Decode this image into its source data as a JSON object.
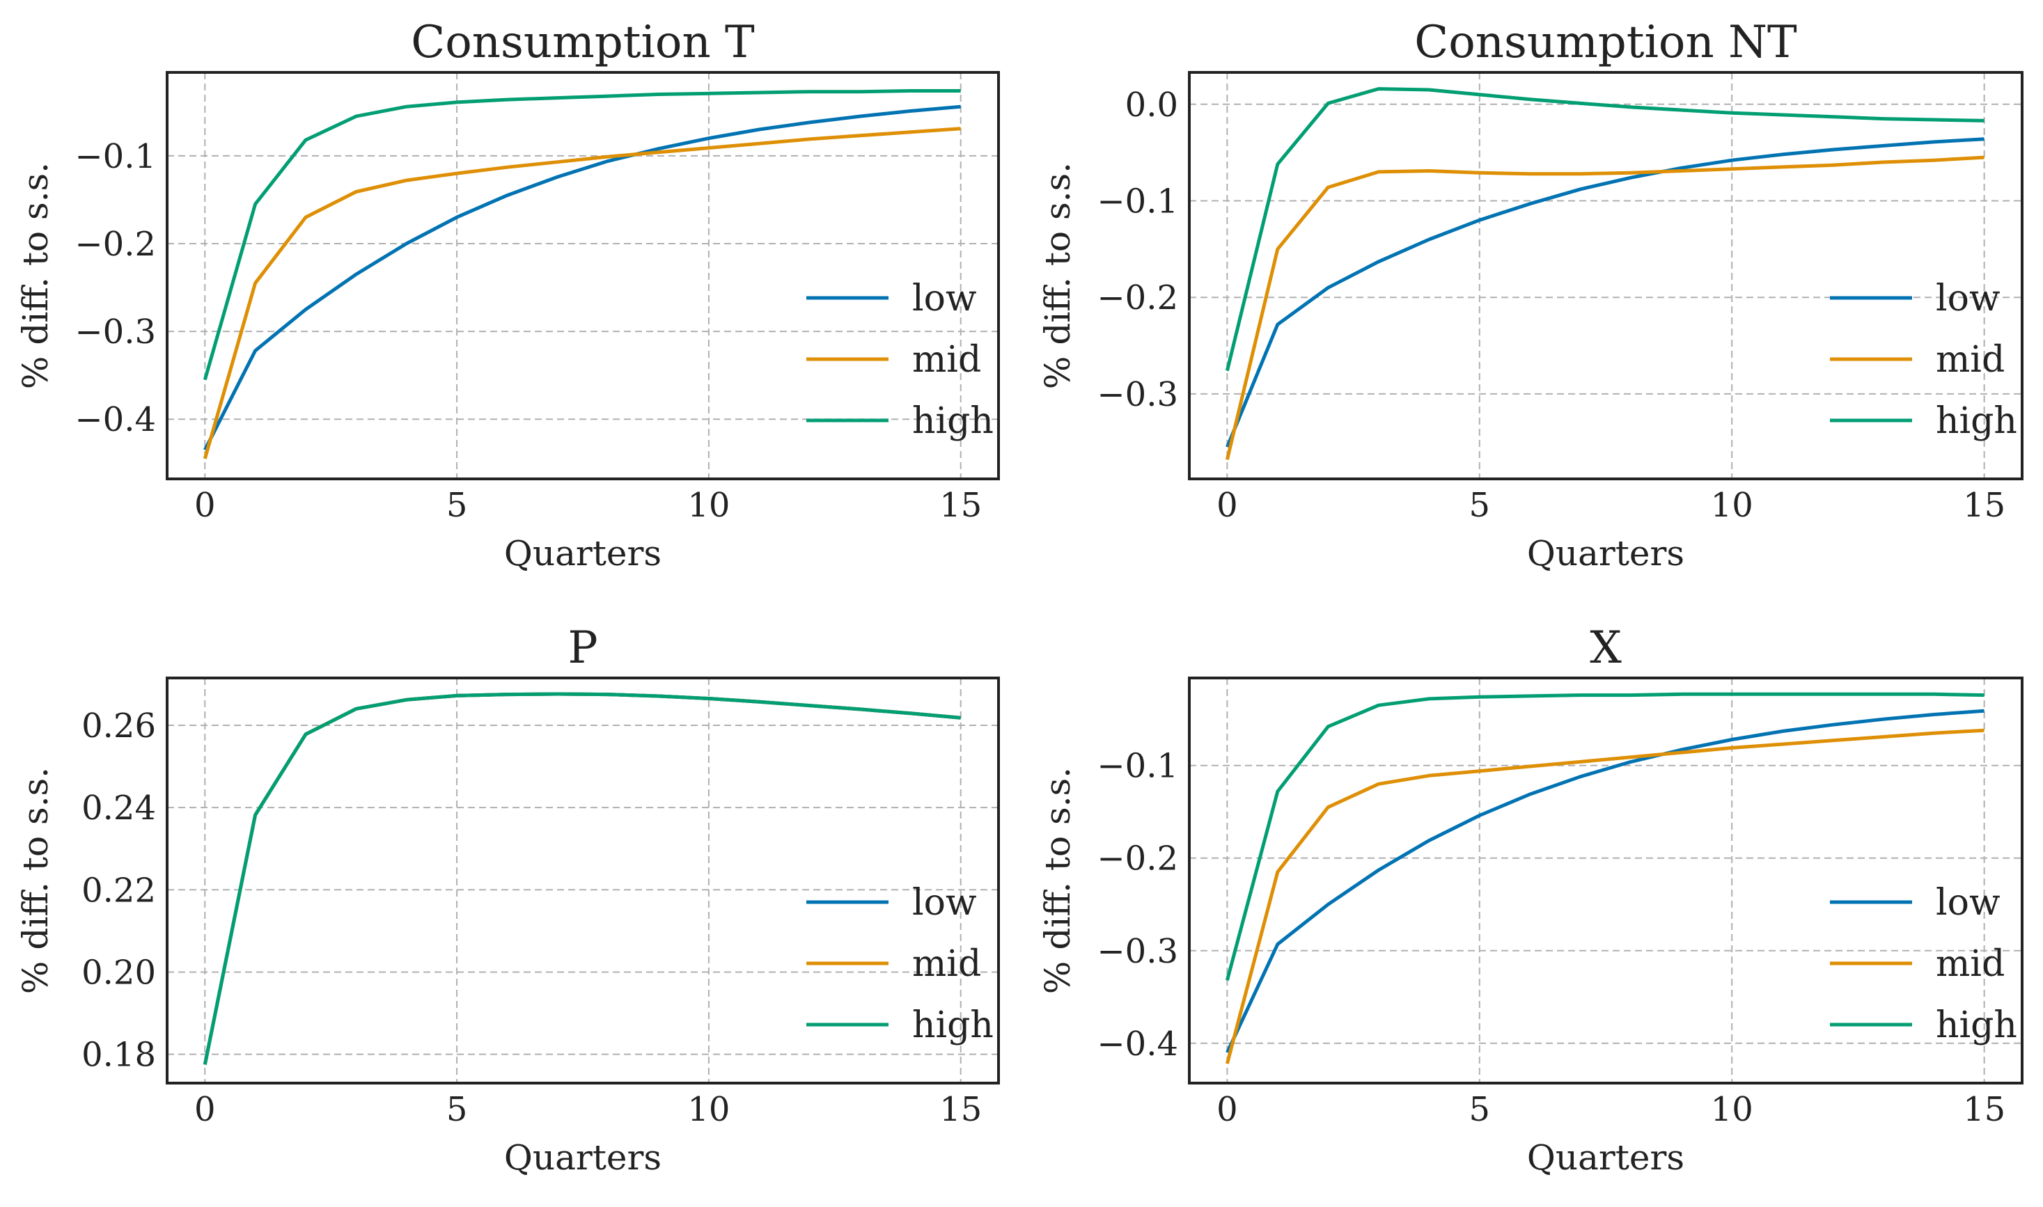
{
  "chart_data": [
    {
      "type": "line",
      "title": "Consumption T",
      "xlabel": "Quarters",
      "ylabel": "% diff. to s.s.",
      "xlim": [
        -0.75,
        15.75
      ],
      "ylim": [
        -0.468,
        -0.005
      ],
      "xticks": [
        0,
        5,
        10,
        15
      ],
      "yticks": [
        -0.1,
        -0.2,
        -0.3,
        -0.4
      ],
      "ytick_labels": [
        "−0.1",
        "−0.2",
        "−0.3",
        "−0.4"
      ],
      "grid": true,
      "legend": "lower-right",
      "x": [
        0,
        1,
        2,
        3,
        4,
        5,
        6,
        7,
        8,
        9,
        10,
        11,
        12,
        13,
        14,
        15
      ],
      "series": [
        {
          "name": "low",
          "color": "#0173b2",
          "values": [
            -0.435,
            -0.322,
            -0.275,
            -0.235,
            -0.2,
            -0.17,
            -0.145,
            -0.124,
            -0.106,
            -0.092,
            -0.08,
            -0.07,
            -0.062,
            -0.055,
            -0.049,
            -0.044
          ]
        },
        {
          "name": "mid",
          "color": "#de8f05",
          "values": [
            -0.445,
            -0.245,
            -0.17,
            -0.141,
            -0.128,
            -0.12,
            -0.113,
            -0.107,
            -0.101,
            -0.096,
            -0.091,
            -0.086,
            -0.081,
            -0.077,
            -0.073,
            -0.069
          ]
        },
        {
          "name": "high",
          "color": "#029e73",
          "values": [
            -0.355,
            -0.155,
            -0.082,
            -0.055,
            -0.044,
            -0.039,
            -0.036,
            -0.034,
            -0.032,
            -0.03,
            -0.029,
            -0.028,
            -0.027,
            -0.027,
            -0.026,
            -0.026
          ]
        }
      ]
    },
    {
      "type": "line",
      "title": "Consumption NT",
      "xlabel": "Quarters",
      "ylabel": "% diff. to s.s.",
      "xlim": [
        -0.75,
        15.75
      ],
      "ylim": [
        -0.388,
        0.033
      ],
      "xticks": [
        0,
        5,
        10,
        15
      ],
      "yticks": [
        0.0,
        -0.1,
        -0.2,
        -0.3
      ],
      "ytick_labels": [
        "0.0",
        "−0.1",
        "−0.2",
        "−0.3"
      ],
      "grid": true,
      "legend": "lower-right",
      "x": [
        0,
        1,
        2,
        3,
        4,
        5,
        6,
        7,
        8,
        9,
        10,
        11,
        12,
        13,
        14,
        15
      ],
      "series": [
        {
          "name": "low",
          "color": "#0173b2",
          "values": [
            -0.355,
            -0.228,
            -0.19,
            -0.163,
            -0.14,
            -0.12,
            -0.103,
            -0.088,
            -0.076,
            -0.066,
            -0.058,
            -0.052,
            -0.047,
            -0.043,
            -0.039,
            -0.036
          ]
        },
        {
          "name": "mid",
          "color": "#de8f05",
          "values": [
            -0.368,
            -0.15,
            -0.086,
            -0.07,
            -0.069,
            -0.071,
            -0.072,
            -0.072,
            -0.071,
            -0.069,
            -0.067,
            -0.065,
            -0.063,
            -0.06,
            -0.058,
            -0.055
          ]
        },
        {
          "name": "high",
          "color": "#029e73",
          "values": [
            -0.276,
            -0.062,
            0.001,
            0.016,
            0.015,
            0.01,
            0.005,
            0.001,
            -0.003,
            -0.006,
            -0.009,
            -0.011,
            -0.013,
            -0.015,
            -0.016,
            -0.017
          ]
        }
      ]
    },
    {
      "type": "line",
      "title": "P",
      "xlabel": "Quarters",
      "ylabel": "% diff. to s.s.",
      "xlim": [
        -0.75,
        15.75
      ],
      "ylim": [
        0.173,
        0.2715
      ],
      "xticks": [
        0,
        5,
        10,
        15
      ],
      "yticks": [
        0.26,
        0.24,
        0.22,
        0.2,
        0.18
      ],
      "ytick_labels": [
        "0.26",
        "0.24",
        "0.22",
        "0.20",
        "0.18"
      ],
      "grid": true,
      "legend": "lower-right",
      "x": [
        0,
        1,
        2,
        3,
        4,
        5,
        6,
        7,
        8,
        9,
        10,
        11,
        12,
        13,
        14,
        15
      ],
      "series": [
        {
          "name": "low",
          "color": "#0173b2",
          "values": [
            0.1775,
            0.2382,
            0.2578,
            0.264,
            0.2662,
            0.2672,
            0.2675,
            0.2676,
            0.2675,
            0.2671,
            0.2665,
            0.2657,
            0.2648,
            0.2639,
            0.2629,
            0.2618
          ]
        },
        {
          "name": "mid",
          "color": "#de8f05",
          "values": [
            0.1775,
            0.2382,
            0.2578,
            0.264,
            0.2662,
            0.2672,
            0.2675,
            0.2676,
            0.2675,
            0.2671,
            0.2665,
            0.2657,
            0.2648,
            0.2639,
            0.2629,
            0.2618
          ]
        },
        {
          "name": "high",
          "color": "#029e73",
          "values": [
            0.1775,
            0.2382,
            0.2578,
            0.264,
            0.2662,
            0.2672,
            0.2675,
            0.2676,
            0.2675,
            0.2671,
            0.2665,
            0.2657,
            0.2648,
            0.2639,
            0.2629,
            0.2618
          ]
        }
      ]
    },
    {
      "type": "line",
      "title": "X",
      "xlabel": "Quarters",
      "ylabel": "% diff. to s.s.",
      "xlim": [
        -0.75,
        15.75
      ],
      "ylim": [
        -0.443,
        -0.0055
      ],
      "xticks": [
        0,
        5,
        10,
        15
      ],
      "yticks": [
        -0.1,
        -0.2,
        -0.3,
        -0.4
      ],
      "ytick_labels": [
        "−0.1",
        "−0.2",
        "−0.3",
        "−0.4"
      ],
      "grid": true,
      "legend": "lower-right",
      "x": [
        0,
        1,
        2,
        3,
        4,
        5,
        6,
        7,
        8,
        9,
        10,
        11,
        12,
        13,
        14,
        15
      ],
      "series": [
        {
          "name": "low",
          "color": "#0173b2",
          "values": [
            -0.41,
            -0.293,
            -0.25,
            -0.213,
            -0.181,
            -0.154,
            -0.131,
            -0.112,
            -0.096,
            -0.083,
            -0.072,
            -0.063,
            -0.056,
            -0.05,
            -0.045,
            -0.041
          ]
        },
        {
          "name": "mid",
          "color": "#de8f05",
          "values": [
            -0.422,
            -0.215,
            -0.145,
            -0.12,
            -0.111,
            -0.106,
            -0.101,
            -0.096,
            -0.091,
            -0.086,
            -0.081,
            -0.077,
            -0.073,
            -0.069,
            -0.065,
            -0.062
          ]
        },
        {
          "name": "high",
          "color": "#029e73",
          "values": [
            -0.332,
            -0.128,
            -0.058,
            -0.035,
            -0.028,
            -0.026,
            -0.025,
            -0.024,
            -0.024,
            -0.023,
            -0.023,
            -0.023,
            -0.023,
            -0.023,
            -0.023,
            -0.024
          ]
        }
      ]
    }
  ]
}
